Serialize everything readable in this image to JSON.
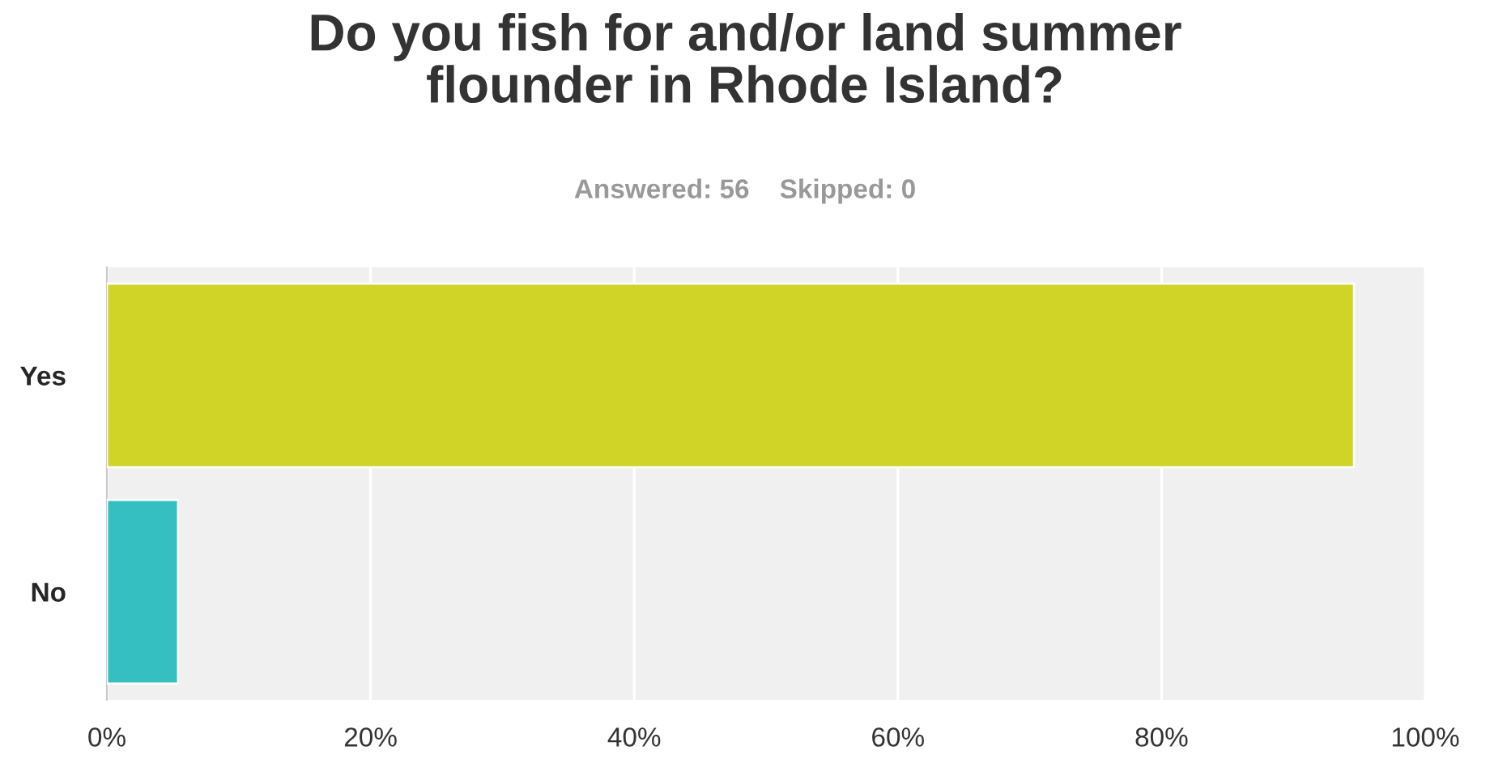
{
  "chart_data": {
    "type": "bar",
    "orientation": "horizontal",
    "title": "Do you fish for and/or land summer\nflounder in Rhode Island?",
    "subtitle": "Answered: 56    Skipped: 0",
    "categories": [
      "Yes",
      "No"
    ],
    "values": [
      94.6,
      5.4
    ],
    "colors": [
      "#cfd427",
      "#35bfc0"
    ],
    "xlim": [
      0,
      100
    ],
    "xticks": [
      {
        "value": 0,
        "label": "0%"
      },
      {
        "value": 20,
        "label": "20%"
      },
      {
        "value": 40,
        "label": "40%"
      },
      {
        "value": 60,
        "label": "60%"
      },
      {
        "value": 80,
        "label": "80%"
      },
      {
        "value": 100,
        "label": "100%"
      }
    ],
    "grid": "x"
  }
}
